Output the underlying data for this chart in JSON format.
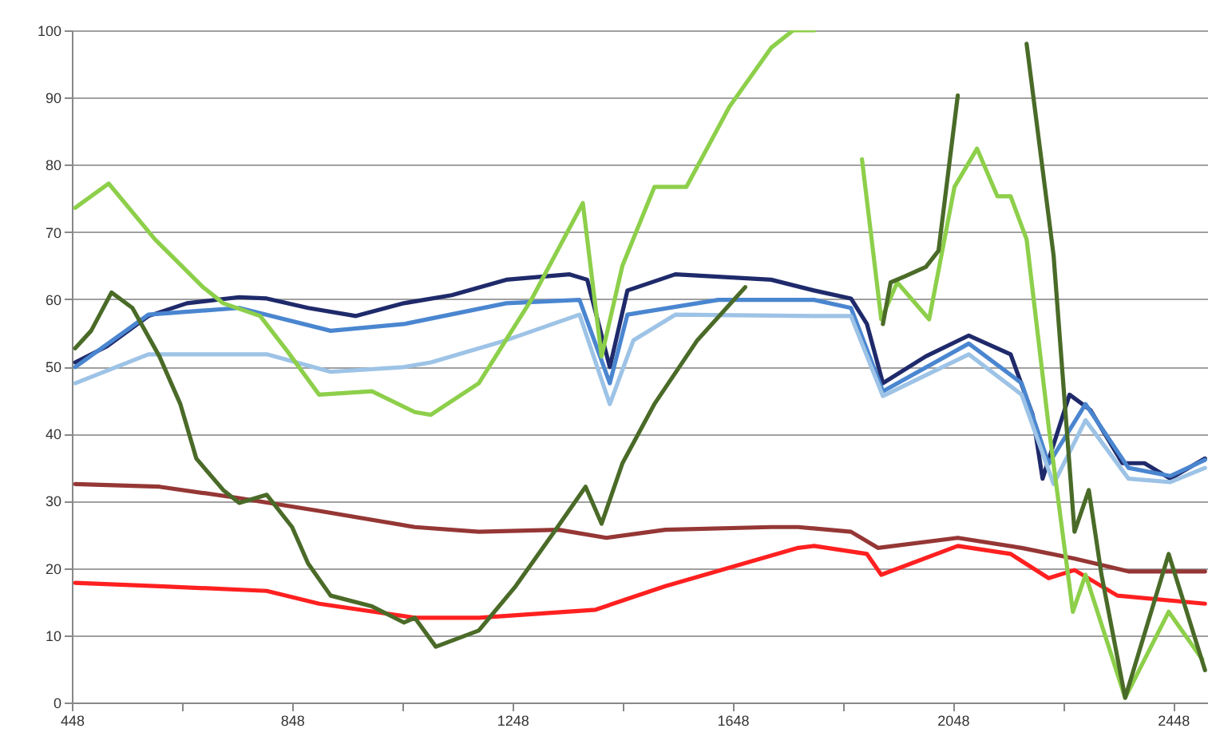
{
  "chart_data": {
    "type": "line",
    "xlim": [
      448,
      2510
    ],
    "ylim": [
      0,
      100
    ],
    "xticks": [
      448,
      {
        "value": 648,
        "label": null
      },
      848,
      {
        "value": 1048,
        "label": null
      },
      1248,
      {
        "value": 1448,
        "label": null
      },
      1648,
      {
        "value": 1848,
        "label": null
      },
      2048,
      {
        "value": 2248,
        "label": null
      },
      2448
    ],
    "yticks": [
      0,
      10,
      20,
      30,
      40,
      50,
      60,
      70,
      80,
      90,
      100
    ],
    "grid": "y",
    "line_style": "solid",
    "series": [
      {
        "color": "#953735",
        "x": [
          454,
          607,
          752,
          897,
          1071,
          1187,
          1332,
          1419,
          1526,
          1718,
          1767,
          1863,
          1912,
          2057,
          2173,
          2269,
          2367,
          2506
        ],
        "values": [
          32.5,
          32.1,
          30.4,
          28.5,
          26.1,
          25.4,
          25.7,
          24.5,
          25.7,
          26.1,
          26.1,
          25.4,
          23,
          24.5,
          23,
          21.4,
          19.5,
          19.5
        ]
      },
      {
        "color": "#ff2020",
        "x": [
          454,
          607,
          802,
          897,
          1071,
          1187,
          1399,
          1526,
          1767,
          1796,
          1892,
          1918,
          2057,
          2153,
          2222,
          2269,
          2347,
          2506
        ],
        "values": [
          17.8,
          17.3,
          16.6,
          14.7,
          12.6,
          12.6,
          13.8,
          17.3,
          23,
          23.3,
          22.1,
          19,
          23.3,
          22.1,
          18.5,
          19.7,
          15.9,
          14.7
        ]
      },
      {
        "color": "#1f2a6b",
        "x": [
          454,
          512,
          587,
          657,
          752,
          802,
          877,
          964,
          1051,
          1138,
          1237,
          1352,
          1384,
          1425,
          1457,
          1544,
          1718,
          1796,
          1863,
          1892,
          1921,
          1999,
          2077,
          2153,
          2193,
          2211,
          2260,
          2298,
          2356,
          2396,
          2443,
          2506
        ],
        "values": [
          50.6,
          53,
          57.5,
          59.4,
          60.3,
          60.1,
          58.7,
          57.5,
          59.4,
          60.6,
          62.9,
          63.7,
          62.9,
          49.9,
          61.3,
          63.7,
          62.9,
          61.3,
          60.1,
          56.3,
          47.5,
          51.5,
          54.6,
          51.8,
          42.8,
          33.3,
          45.8,
          43.5,
          35.6,
          35.6,
          33.3,
          36.3
        ]
      },
      {
        "color": "#4a86d0",
        "x": [
          454,
          587,
          752,
          918,
          1051,
          1237,
          1370,
          1425,
          1457,
          1622,
          1796,
          1863,
          1921,
          2077,
          2173,
          2222,
          2289,
          2367,
          2443,
          2506
        ],
        "values": [
          49.9,
          57.7,
          58.7,
          55.3,
          56.3,
          59.4,
          59.9,
          47.5,
          57.7,
          59.9,
          59.9,
          58.7,
          46.3,
          53.4,
          47.5,
          35.5,
          44.4,
          34.9,
          33.7,
          36.1
        ]
      },
      {
        "color": "#9dc3e6",
        "x": [
          454,
          587,
          802,
          918,
          1051,
          1100,
          1237,
          1370,
          1425,
          1468,
          1544,
          1796,
          1863,
          1921,
          2077,
          2173,
          2231,
          2289,
          2367,
          2443,
          2506
        ],
        "values": [
          47.5,
          51.8,
          51.8,
          49.2,
          49.9,
          50.6,
          53.9,
          57.7,
          44.4,
          53.9,
          57.7,
          57.5,
          57.5,
          45.6,
          51.8,
          45.8,
          32.5,
          42,
          33.3,
          32.8,
          34.9
        ]
      },
      {
        "color": "#8dcf4a",
        "x": [
          454,
          515,
          599,
          686,
          723,
          790,
          839,
          897,
          993,
          1071,
          1100,
          1187,
          1283,
          1376,
          1410,
          1448,
          1506,
          1564,
          1642,
          1718,
          1758,
          1796,
          1830,
          1883,
          1918,
          1947,
          2005,
          2051,
          2092,
          2129,
          2153,
          2182,
          2222,
          2266,
          2289,
          2361,
          2440,
          2501
        ],
        "values": [
          73.6,
          77.2,
          68.9,
          61.8,
          59.4,
          57.5,
          52.3,
          45.8,
          46.3,
          43.2,
          42.8,
          47.5,
          60,
          74.3,
          51.5,
          65,
          76.7,
          76.7,
          88.6,
          97.4,
          100,
          100,
          null,
          80.8,
          57,
          62.5,
          57,
          76.7,
          82.4,
          75.3,
          75.3,
          68.9,
          41.1,
          13.5,
          19,
          0.7,
          13.5,
          6.4
        ]
      },
      {
        "color": "#4a6b28",
        "x": [
          454,
          483,
          520,
          558,
          607,
          645,
          674,
          723,
          752,
          802,
          848,
          877,
          918,
          993,
          1051,
          1071,
          1109,
          1187,
          1254,
          1324,
          1381,
          1410,
          1448,
          1506,
          1584,
          1671,
          1770,
          1921,
          1935,
          1961,
          1999,
          2022,
          2057,
          2110,
          2182,
          2231,
          2269,
          2295,
          2318,
          2361,
          2440,
          2506
        ],
        "values": [
          52.7,
          55.3,
          61,
          58.7,
          51.5,
          44.4,
          36.3,
          31.6,
          29.7,
          30.9,
          26.1,
          20.7,
          15.9,
          14.3,
          11.9,
          12.6,
          8.3,
          10.7,
          17.3,
          25.4,
          32.1,
          26.6,
          35.6,
          44.4,
          53.9,
          61.8,
          null,
          56.3,
          62.5,
          63.4,
          64.8,
          67.2,
          90.3,
          null,
          98,
          66.5,
          25.4,
          31.6,
          19,
          0.7,
          22.1,
          4.8
        ]
      }
    ]
  }
}
